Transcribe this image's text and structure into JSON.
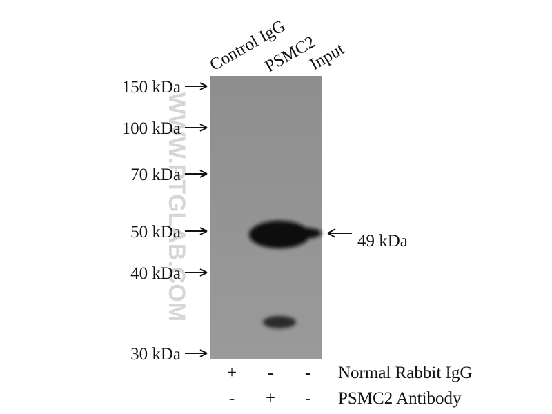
{
  "lanes": [
    "Control IgG",
    "PSMC2",
    "Input"
  ],
  "markers": [
    "150 kDa",
    "100 kDa",
    "70 kDa",
    "50 kDa",
    "40 kDa",
    "30 kDa"
  ],
  "band_label": "49 kDa",
  "watermark": "WWW.PTGLAB.COM",
  "rows": [
    {
      "label": "Normal Rabbit IgG",
      "signs": [
        "+",
        "-",
        "-"
      ]
    },
    {
      "label": "PSMC2 Antibody",
      "signs": [
        "-",
        "+",
        "-"
      ]
    }
  ]
}
